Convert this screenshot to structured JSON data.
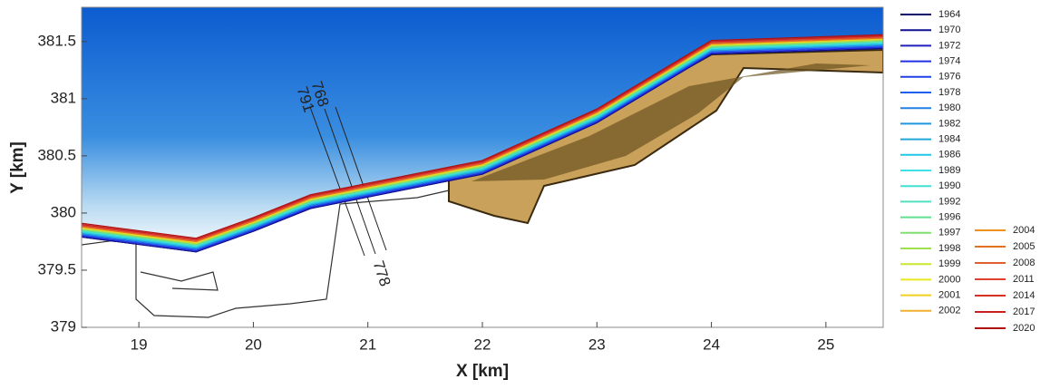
{
  "chart_data": {
    "type": "line",
    "xlabel": "X [km]",
    "ylabel": "Y [km]",
    "xlim": [
      18.5,
      25.5
    ],
    "ylim": [
      379,
      381.8
    ],
    "xticks": [
      19,
      20,
      21,
      22,
      23,
      24,
      25
    ],
    "yticks": [
      379,
      379.5,
      380,
      380.5,
      381,
      381.5
    ],
    "annotations": [
      "768",
      "791",
      "778"
    ],
    "x": [
      18.5,
      19.5,
      20,
      20.5,
      21,
      22,
      23,
      24,
      25.5
    ],
    "series": [
      {
        "name": "1964",
        "color": "#0a0a6e",
        "values": [
          379.79,
          379.66,
          379.84,
          380.04,
          380.14,
          380.34,
          380.79,
          381.39,
          381.44
        ]
      },
      {
        "name": "1970",
        "color": "#101090",
        "values": [
          379.79,
          379.66,
          379.84,
          380.04,
          380.14,
          380.34,
          380.79,
          381.39,
          381.44
        ]
      },
      {
        "name": "1972",
        "color": "#2020c0",
        "values": [
          379.8,
          379.67,
          379.85,
          380.05,
          380.15,
          380.35,
          380.8,
          381.4,
          381.45
        ]
      },
      {
        "name": "1974",
        "color": "#2030e0",
        "values": [
          379.8,
          379.67,
          379.85,
          380.05,
          380.15,
          380.35,
          380.8,
          381.4,
          381.45
        ]
      },
      {
        "name": "1976",
        "color": "#2040e8",
        "values": [
          379.81,
          379.68,
          379.86,
          380.06,
          380.16,
          380.36,
          380.81,
          381.41,
          381.46
        ]
      },
      {
        "name": "1978",
        "color": "#2060f0",
        "values": [
          379.81,
          379.68,
          379.86,
          380.06,
          380.16,
          380.36,
          380.81,
          381.41,
          381.46
        ]
      },
      {
        "name": "1980",
        "color": "#2080e8",
        "values": [
          379.82,
          379.69,
          379.87,
          380.07,
          380.17,
          380.37,
          380.82,
          381.42,
          381.47
        ]
      },
      {
        "name": "1982",
        "color": "#2098e0",
        "values": [
          379.82,
          379.69,
          379.87,
          380.07,
          380.17,
          380.37,
          380.82,
          381.42,
          381.47
        ]
      },
      {
        "name": "1984",
        "color": "#20a8d8",
        "values": [
          379.83,
          379.7,
          379.88,
          380.08,
          380.18,
          380.38,
          380.83,
          381.43,
          381.48
        ]
      },
      {
        "name": "1986",
        "color": "#20c8e8",
        "values": [
          379.83,
          379.7,
          379.88,
          380.08,
          380.18,
          380.38,
          380.83,
          381.43,
          381.48
        ]
      },
      {
        "name": "1989",
        "color": "#40e0e8",
        "values": [
          379.84,
          379.71,
          379.89,
          380.09,
          380.19,
          380.39,
          380.84,
          381.44,
          381.49
        ]
      },
      {
        "name": "1990",
        "color": "#40e0d0",
        "values": [
          379.84,
          379.71,
          379.89,
          380.09,
          380.19,
          380.39,
          380.84,
          381.44,
          381.49
        ]
      },
      {
        "name": "1992",
        "color": "#50e0c0",
        "values": [
          379.85,
          379.72,
          379.9,
          380.1,
          380.2,
          380.4,
          380.85,
          381.45,
          381.5
        ]
      },
      {
        "name": "1996",
        "color": "#60e090",
        "values": [
          379.85,
          379.72,
          379.9,
          380.1,
          380.2,
          380.4,
          380.85,
          381.45,
          381.5
        ]
      },
      {
        "name": "1997",
        "color": "#80e070",
        "values": [
          379.86,
          379.73,
          379.91,
          380.11,
          380.21,
          380.41,
          380.86,
          381.46,
          381.51
        ]
      },
      {
        "name": "1998",
        "color": "#a0e050",
        "values": [
          379.86,
          379.73,
          379.91,
          380.11,
          380.21,
          380.41,
          380.86,
          381.46,
          381.51
        ]
      },
      {
        "name": "1999",
        "color": "#c8e830",
        "values": [
          379.87,
          379.74,
          379.92,
          380.12,
          380.22,
          380.42,
          380.87,
          381.47,
          381.52
        ]
      },
      {
        "name": "2000",
        "color": "#e8e820",
        "values": [
          379.87,
          379.74,
          379.92,
          380.12,
          380.22,
          380.42,
          380.87,
          381.47,
          381.52
        ]
      },
      {
        "name": "2001",
        "color": "#f0d020",
        "values": [
          379.87,
          379.74,
          379.92,
          380.12,
          380.22,
          380.42,
          380.87,
          381.47,
          381.52
        ]
      },
      {
        "name": "2002",
        "color": "#f0b030",
        "values": [
          379.88,
          379.75,
          379.93,
          380.13,
          380.23,
          380.43,
          380.88,
          381.48,
          381.53
        ]
      },
      {
        "name": "2004",
        "color": "#f09020",
        "values": [
          379.88,
          379.75,
          379.93,
          380.13,
          380.23,
          380.43,
          380.88,
          381.48,
          381.53
        ]
      },
      {
        "name": "2005",
        "color": "#e07020",
        "values": [
          379.88,
          379.75,
          379.93,
          380.13,
          380.23,
          380.43,
          380.88,
          381.48,
          381.53
        ]
      },
      {
        "name": "2008",
        "color": "#e06030",
        "values": [
          379.89,
          379.76,
          379.94,
          380.14,
          380.24,
          380.44,
          380.89,
          381.49,
          381.54
        ]
      },
      {
        "name": "2011",
        "color": "#e04030",
        "values": [
          379.89,
          379.76,
          379.94,
          380.14,
          380.24,
          380.44,
          380.89,
          381.49,
          381.54
        ]
      },
      {
        "name": "2014",
        "color": "#d83020",
        "values": [
          379.9,
          379.77,
          379.95,
          380.15,
          380.25,
          380.45,
          380.9,
          381.5,
          381.55
        ]
      },
      {
        "name": "2017",
        "color": "#c82020",
        "values": [
          379.9,
          379.77,
          379.95,
          380.15,
          380.25,
          380.45,
          380.9,
          381.5,
          381.55
        ]
      },
      {
        "name": "2020",
        "color": "#b01010",
        "values": [
          379.91,
          379.78,
          379.96,
          380.16,
          380.26,
          380.46,
          380.91,
          381.51,
          381.56
        ]
      }
    ]
  }
}
